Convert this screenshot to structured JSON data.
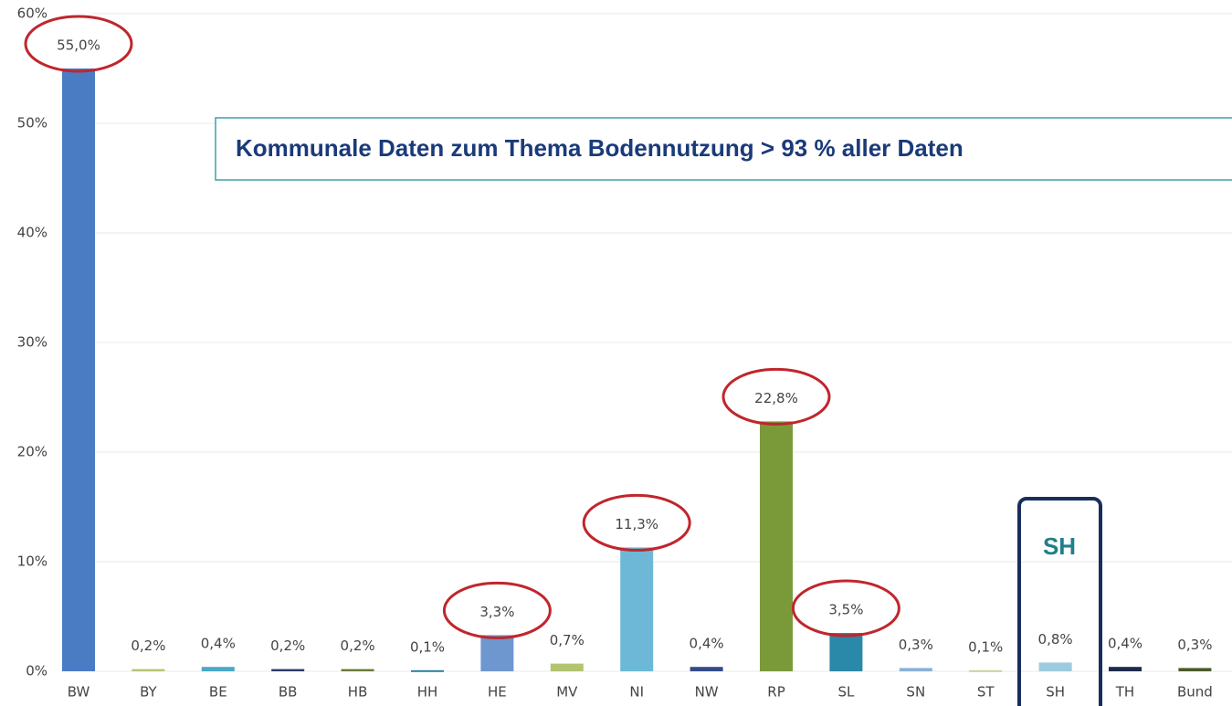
{
  "chart_data": {
    "type": "bar",
    "categories": [
      "BW",
      "BY",
      "BE",
      "BB",
      "HB",
      "HH",
      "HE",
      "MV",
      "NI",
      "NW",
      "RP",
      "SL",
      "SN",
      "ST",
      "SH",
      "TH",
      "Bund"
    ],
    "values": [
      55.0,
      0.2,
      0.4,
      0.2,
      0.2,
      0.1,
      3.3,
      0.7,
      11.3,
      0.4,
      22.8,
      3.5,
      0.3,
      0.1,
      0.8,
      0.4,
      0.3
    ],
    "value_labels": [
      "55,0%",
      "0,2%",
      "0,4%",
      "0,2%",
      "0,2%",
      "0,1%",
      "3,3%",
      "0,7%",
      "11,3%",
      "0,4%",
      "22,8%",
      "3,5%",
      "0,3%",
      "0,1%",
      "0,8%",
      "0,4%",
      "0,3%"
    ],
    "colors": [
      "#4a7cc4",
      "#b8c478",
      "#4aa8c8",
      "#2b3a6b",
      "#6a7a3a",
      "#2a7fa3",
      "#6f97cf",
      "#b3c46f",
      "#6cb8d6",
      "#344a8a",
      "#7a9a3a",
      "#2a88a8",
      "#8ab0d8",
      "#c4d49a",
      "#9ccbe0",
      "#1e2a4a",
      "#4a5a2a"
    ],
    "ylim": [
      0,
      60
    ],
    "yticks": [
      {
        "value": 0,
        "label": "0%"
      },
      {
        "value": 10,
        "label": "10%"
      },
      {
        "value": 20,
        "label": "20%"
      },
      {
        "value": 30,
        "label": "30%"
      },
      {
        "value": 40,
        "label": "40%"
      },
      {
        "value": 50,
        "label": "50%"
      },
      {
        "value": 60,
        "label": "60%"
      }
    ],
    "grid": true,
    "annotation": "Kommunale Daten zum Thema Bodennutzung > 93 % aller Daten",
    "highlight_label": "SH"
  }
}
